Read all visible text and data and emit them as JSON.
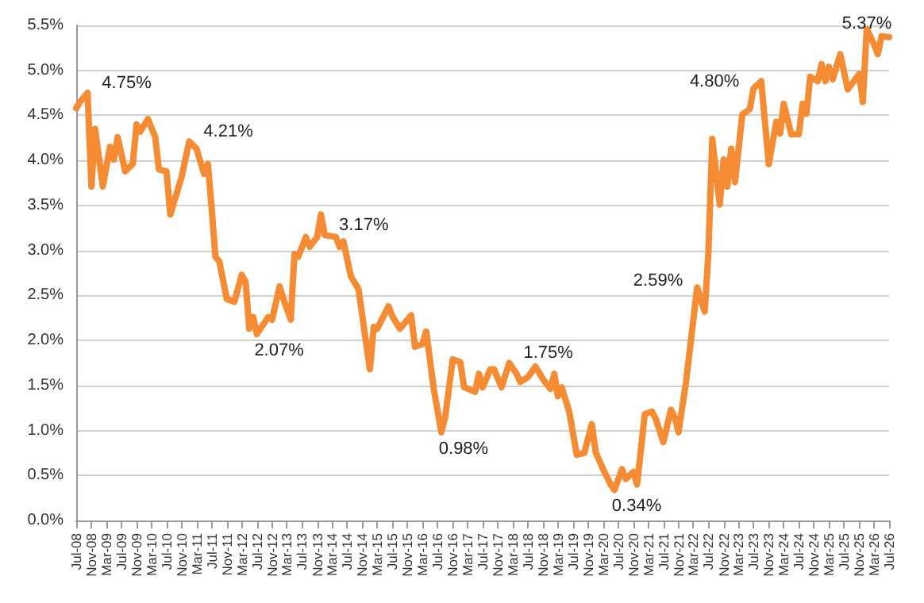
{
  "chart_data": {
    "type": "line",
    "x": [
      "2008-07",
      "2008-08",
      "2008-10",
      "2008-11",
      "2008-12",
      "2009-02",
      "2009-04",
      "2009-05",
      "2009-06",
      "2009-08",
      "2009-10",
      "2009-11",
      "2009-12",
      "2010-02",
      "2010-04",
      "2010-05",
      "2010-07",
      "2010-08",
      "2010-11",
      "2011-01",
      "2011-03",
      "2011-05",
      "2011-06",
      "2011-07",
      "2011-08",
      "2011-09",
      "2011-11",
      "2012-01",
      "2012-03",
      "2012-04",
      "2012-05",
      "2012-06",
      "2012-07",
      "2012-10",
      "2012-11",
      "2013-01",
      "2013-02",
      "2013-04",
      "2013-05",
      "2013-06",
      "2013-08",
      "2013-09",
      "2013-11",
      "2013-12",
      "2014-01",
      "2014-04",
      "2014-05",
      "2014-06",
      "2014-08",
      "2014-10",
      "2015-01",
      "2015-02",
      "2015-03",
      "2015-06",
      "2015-07",
      "2015-09",
      "2015-12",
      "2016-01",
      "2016-03",
      "2016-04",
      "2016-06",
      "2016-08",
      "2016-09",
      "2016-11",
      "2017-01",
      "2017-02",
      "2017-05",
      "2017-06",
      "2017-07",
      "2017-09",
      "2017-10",
      "2017-12",
      "2018-02",
      "2018-04",
      "2018-05",
      "2018-07",
      "2018-09",
      "2018-11",
      "2019-01",
      "2019-02",
      "2019-03",
      "2019-04",
      "2019-06",
      "2019-08",
      "2019-10",
      "2019-12",
      "2020-01",
      "2020-03",
      "2020-05",
      "2020-06",
      "2020-08",
      "2020-09",
      "2020-11",
      "2020-12",
      "2021-02",
      "2021-04",
      "2021-05",
      "2021-07",
      "2021-09",
      "2021-10",
      "2021-11",
      "2022-01",
      "2022-04",
      "2022-06",
      "2022-07",
      "2022-08",
      "2022-10",
      "2022-11",
      "2022-12",
      "2023-01",
      "2023-02",
      "2023-04",
      "2023-06",
      "2023-07",
      "2023-09",
      "2023-11",
      "2024-01",
      "2024-02",
      "2024-03",
      "2024-05",
      "2024-07",
      "2024-08",
      "2024-09",
      "2024-10",
      "2024-12",
      "2025-01",
      "2025-02",
      "2025-03",
      "2025-04",
      "2025-06",
      "2025-08",
      "2025-11",
      "2025-12",
      "2026-01",
      "2026-03",
      "2026-04",
      "2026-05",
      "2026-07"
    ],
    "series": [
      {
        "color": "#f58b33",
        "values": [
          4.58,
          4.65,
          4.75,
          3.71,
          4.35,
          3.71,
          4.15,
          4.01,
          4.26,
          3.88,
          3.96,
          4.4,
          4.32,
          4.46,
          4.26,
          3.9,
          3.88,
          3.4,
          3.82,
          4.21,
          4.13,
          3.85,
          3.96,
          3.48,
          2.93,
          2.88,
          2.46,
          2.43,
          2.73,
          2.65,
          2.13,
          2.26,
          2.07,
          2.26,
          2.23,
          2.6,
          2.46,
          2.23,
          2.96,
          2.93,
          3.15,
          3.04,
          3.15,
          3.4,
          3.17,
          3.15,
          3.04,
          3.1,
          2.71,
          2.57,
          1.68,
          2.15,
          2.13,
          2.38,
          2.27,
          2.13,
          2.28,
          1.93,
          1.96,
          2.1,
          1.46,
          0.98,
          1.15,
          1.79,
          1.76,
          1.48,
          1.43,
          1.63,
          1.48,
          1.68,
          1.68,
          1.48,
          1.75,
          1.63,
          1.54,
          1.59,
          1.71,
          1.57,
          1.46,
          1.63,
          1.38,
          1.48,
          1.21,
          0.73,
          0.75,
          1.07,
          0.76,
          0.57,
          0.4,
          0.34,
          0.57,
          0.46,
          0.54,
          0.4,
          1.18,
          1.21,
          1.13,
          0.87,
          1.23,
          1.15,
          0.98,
          1.54,
          2.59,
          2.32,
          2.98,
          4.24,
          3.51,
          4.01,
          3.71,
          4.13,
          3.76,
          4.51,
          4.57,
          4.8,
          4.88,
          3.96,
          4.43,
          4.3,
          4.63,
          4.29,
          4.29,
          4.63,
          4.52,
          4.93,
          4.88,
          5.07,
          4.88,
          5.04,
          4.9,
          5.18,
          4.79,
          4.96,
          4.65,
          5.46,
          5.29,
          5.18,
          5.38,
          5.37
        ],
        "value_labels": [
          null,
          null,
          "4.75%",
          null,
          null,
          null,
          null,
          null,
          null,
          null,
          null,
          null,
          null,
          null,
          null,
          null,
          null,
          null,
          null,
          "4.21%",
          null,
          null,
          null,
          null,
          null,
          null,
          null,
          null,
          null,
          null,
          null,
          null,
          "2.07%",
          null,
          null,
          null,
          null,
          null,
          null,
          null,
          null,
          null,
          null,
          null,
          "3.17%",
          null,
          null,
          null,
          null,
          null,
          null,
          null,
          null,
          null,
          null,
          null,
          null,
          null,
          null,
          null,
          null,
          "0.98%",
          null,
          null,
          null,
          null,
          null,
          null,
          null,
          null,
          null,
          null,
          "1.75%",
          null,
          null,
          null,
          null,
          null,
          null,
          null,
          null,
          null,
          null,
          null,
          null,
          null,
          null,
          null,
          null,
          "0.34%",
          null,
          null,
          null,
          null,
          null,
          null,
          null,
          null,
          null,
          null,
          null,
          null,
          "2.59%",
          null,
          null,
          null,
          null,
          null,
          null,
          null,
          null,
          null,
          null,
          "4.80%",
          null,
          null,
          null,
          null,
          null,
          null,
          null,
          null,
          null,
          null,
          null,
          null,
          null,
          null,
          null,
          null,
          null,
          null,
          null,
          null,
          null,
          null,
          null,
          "5.37%"
        ]
      }
    ],
    "xlim": [
      "2008-07",
      "2026-07"
    ],
    "xticks": [
      {
        "value": "2008-07",
        "label": "Jul-08"
      },
      {
        "value": "2008-11",
        "label": "Nov-08"
      },
      {
        "value": "2009-03",
        "label": "Mar-09"
      },
      {
        "value": "2009-07",
        "label": "Jul-09"
      },
      {
        "value": "2009-11",
        "label": "Nov-09"
      },
      {
        "value": "2010-03",
        "label": "Mar-10"
      },
      {
        "value": "2010-07",
        "label": "Jul-10"
      },
      {
        "value": "2010-11",
        "label": "Nov-10"
      },
      {
        "value": "2011-03",
        "label": "Mar-11"
      },
      {
        "value": "2011-07",
        "label": "Jul-11"
      },
      {
        "value": "2011-11",
        "label": "Nov-11"
      },
      {
        "value": "2012-03",
        "label": "Mar-12"
      },
      {
        "value": "2012-07",
        "label": "Jul-12"
      },
      {
        "value": "2012-11",
        "label": "Nov-12"
      },
      {
        "value": "2013-03",
        "label": "Mar-13"
      },
      {
        "value": "2013-07",
        "label": "Jul-13"
      },
      {
        "value": "2013-11",
        "label": "Nov-13"
      },
      {
        "value": "2014-03",
        "label": "Mar-14"
      },
      {
        "value": "2014-07",
        "label": "Jul-14"
      },
      {
        "value": "2014-11",
        "label": "Nov-14"
      },
      {
        "value": "2015-03",
        "label": "Mar-15"
      },
      {
        "value": "2015-07",
        "label": "Jul-15"
      },
      {
        "value": "2015-11",
        "label": "Nov-15"
      },
      {
        "value": "2016-03",
        "label": "Mar-16"
      },
      {
        "value": "2016-07",
        "label": "Jul-16"
      },
      {
        "value": "2016-11",
        "label": "Nov-16"
      },
      {
        "value": "2017-03",
        "label": "Mar-17"
      },
      {
        "value": "2017-07",
        "label": "Jul-17"
      },
      {
        "value": "2017-11",
        "label": "Nov-17"
      },
      {
        "value": "2018-03",
        "label": "Mar-18"
      },
      {
        "value": "2018-07",
        "label": "Jul-18"
      },
      {
        "value": "2018-11",
        "label": "Nov-18"
      },
      {
        "value": "2019-03",
        "label": "Mar-19"
      },
      {
        "value": "2019-07",
        "label": "Jul-19"
      },
      {
        "value": "2019-11",
        "label": "Nov-19"
      },
      {
        "value": "2020-03",
        "label": "Mar-20"
      },
      {
        "value": "2020-07",
        "label": "Jul-20"
      },
      {
        "value": "2020-11",
        "label": "Nov-20"
      },
      {
        "value": "2021-03",
        "label": "Mar-21"
      },
      {
        "value": "2021-07",
        "label": "Jul-21"
      },
      {
        "value": "2021-11",
        "label": "Nov-21"
      },
      {
        "value": "2022-03",
        "label": "Mar-22"
      },
      {
        "value": "2022-07",
        "label": "Jul-22"
      },
      {
        "value": "2022-11",
        "label": "Nov-22"
      },
      {
        "value": "2023-03",
        "label": "Mar-23"
      },
      {
        "value": "2023-07",
        "label": "Jul-23"
      },
      {
        "value": "2023-11",
        "label": "Nov-23"
      },
      {
        "value": "2024-03",
        "label": "Mar-24"
      },
      {
        "value": "2024-07",
        "label": "Jul-24"
      },
      {
        "value": "2024-11",
        "label": "Nov-24"
      },
      {
        "value": "2025-03",
        "label": "Mar-25"
      },
      {
        "value": "2025-07",
        "label": "Jul-25"
      },
      {
        "value": "2025-11",
        "label": "Nov-25"
      },
      {
        "value": "2026-03",
        "label": "Mar-26"
      },
      {
        "value": "2026-07",
        "label": "Jul-26"
      }
    ],
    "ylim": [
      0,
      5.5
    ],
    "yticks": [
      {
        "value": 0,
        "label": "0.0%"
      },
      {
        "value": 0.5,
        "label": "0.5%"
      },
      {
        "value": 1,
        "label": "1.0%"
      },
      {
        "value": 1.5,
        "label": "1.5%"
      },
      {
        "value": 2,
        "label": "2.0%"
      },
      {
        "value": 2.5,
        "label": "2.5%"
      },
      {
        "value": 3,
        "label": "3.0%"
      },
      {
        "value": 3.5,
        "label": "3.5%"
      },
      {
        "value": 4,
        "label": "4.0%"
      },
      {
        "value": 4.5,
        "label": "4.5%"
      },
      {
        "value": 5,
        "label": "5.0%"
      },
      {
        "value": 5.5,
        "label": "5.5%"
      }
    ],
    "grid": "y",
    "marker": "none",
    "line_style": "solid"
  }
}
